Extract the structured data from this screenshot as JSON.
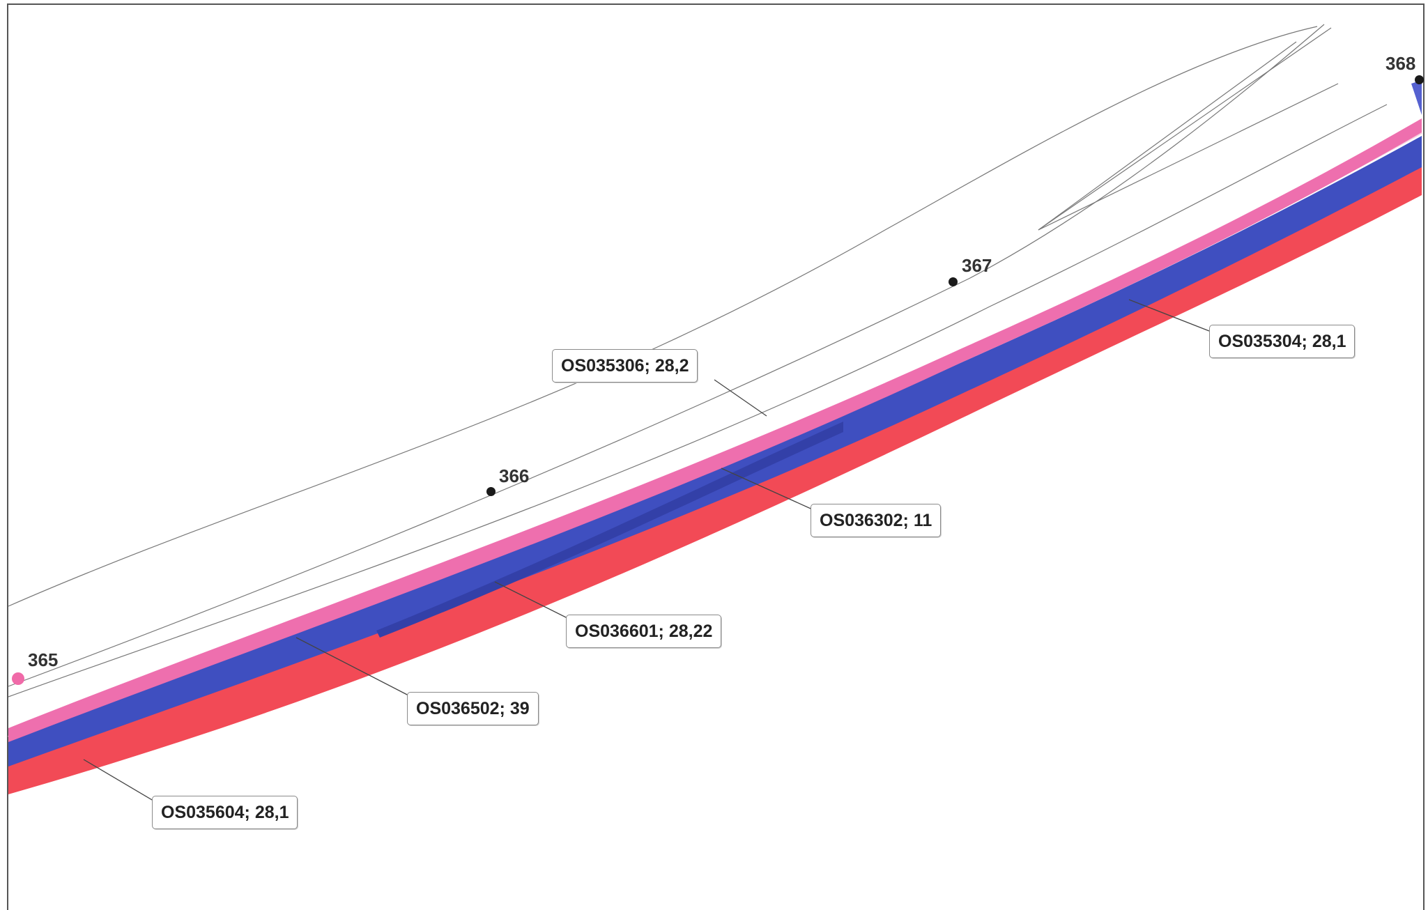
{
  "colors": {
    "pink_strip": "#ee6fae",
    "blue_strip": "#3f4fc0",
    "red_strip": "#f24a56",
    "outline": "#666666",
    "km_dot": "#1a1a1a",
    "km_dot_first": "#f06aa8"
  },
  "km_markers": [
    {
      "label": "365"
    },
    {
      "label": "366"
    },
    {
      "label": "367"
    },
    {
      "label": "368"
    }
  ],
  "parcels": [
    {
      "label": "OS035306; 28,2"
    },
    {
      "label": "OS035304; 28,1"
    },
    {
      "label": "OS036302; 11"
    },
    {
      "label": "OS036601; 28,22"
    },
    {
      "label": "OS036502; 39"
    },
    {
      "label": "OS035604; 28,1"
    }
  ]
}
